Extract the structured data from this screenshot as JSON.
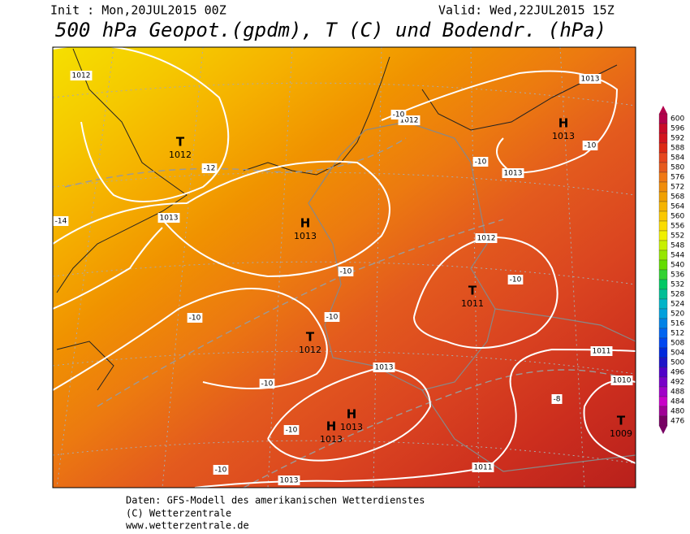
{
  "header": {
    "init": "Init : Mon,20JUL2015 00Z",
    "valid": "Valid: Wed,22JUL2015 15Z",
    "title": "500 hPa Geopot.(gpdm), T (C) und Bodendr. (hPa)"
  },
  "map": {
    "pressure_centers": [
      {
        "symbol": "T",
        "value": "1012"
      },
      {
        "symbol": "H",
        "value": "1013"
      },
      {
        "symbol": "T",
        "value": "1012"
      },
      {
        "symbol": "T",
        "value": "1011"
      },
      {
        "symbol": "H",
        "value": "1013"
      },
      {
        "symbol": "H",
        "value": "1013"
      },
      {
        "symbol": "H",
        "value": "1013"
      },
      {
        "symbol": "T",
        "value": "1009"
      }
    ],
    "isobar_labels": [
      "1012",
      "1013",
      "1012",
      "1013",
      "1013",
      "1012",
      "1013",
      "1011",
      "1010",
      "1013",
      "1011"
    ],
    "temperature_labels": [
      "-12",
      "-14",
      "-10",
      "-10",
      "-10",
      "-10",
      "-10",
      "-10",
      "-10",
      "-10",
      "-10",
      "-8",
      "-10"
    ]
  },
  "legend": {
    "values": [
      600,
      596,
      592,
      588,
      584,
      580,
      576,
      572,
      568,
      564,
      560,
      556,
      552,
      548,
      544,
      540,
      536,
      532,
      528,
      524,
      520,
      516,
      512,
      508,
      504,
      500,
      496,
      492,
      488,
      484,
      480,
      476
    ],
    "colors": [
      "#b4004b",
      "#c80a28",
      "#d2141e",
      "#dc2814",
      "#e6461e",
      "#e65a1e",
      "#f07814",
      "#f08c0a",
      "#f0a000",
      "#f5b400",
      "#fac800",
      "#fadc00",
      "#f0f000",
      "#c8f000",
      "#96e600",
      "#64dc00",
      "#32d232",
      "#00c864",
      "#00be96",
      "#00b4c8",
      "#00a0dc",
      "#0082e6",
      "#0064f0",
      "#0046f0",
      "#0028dc",
      "#1e14c8",
      "#5000c8",
      "#7800c8",
      "#a000c8",
      "#c800c8",
      "#a00096",
      "#780064"
    ]
  },
  "footer": [
    "Daten: GFS-Modell des amerikanischen Wetterdienstes",
    "(C) Wetterzentrale",
    "www.wetterzentrale.de"
  ]
}
